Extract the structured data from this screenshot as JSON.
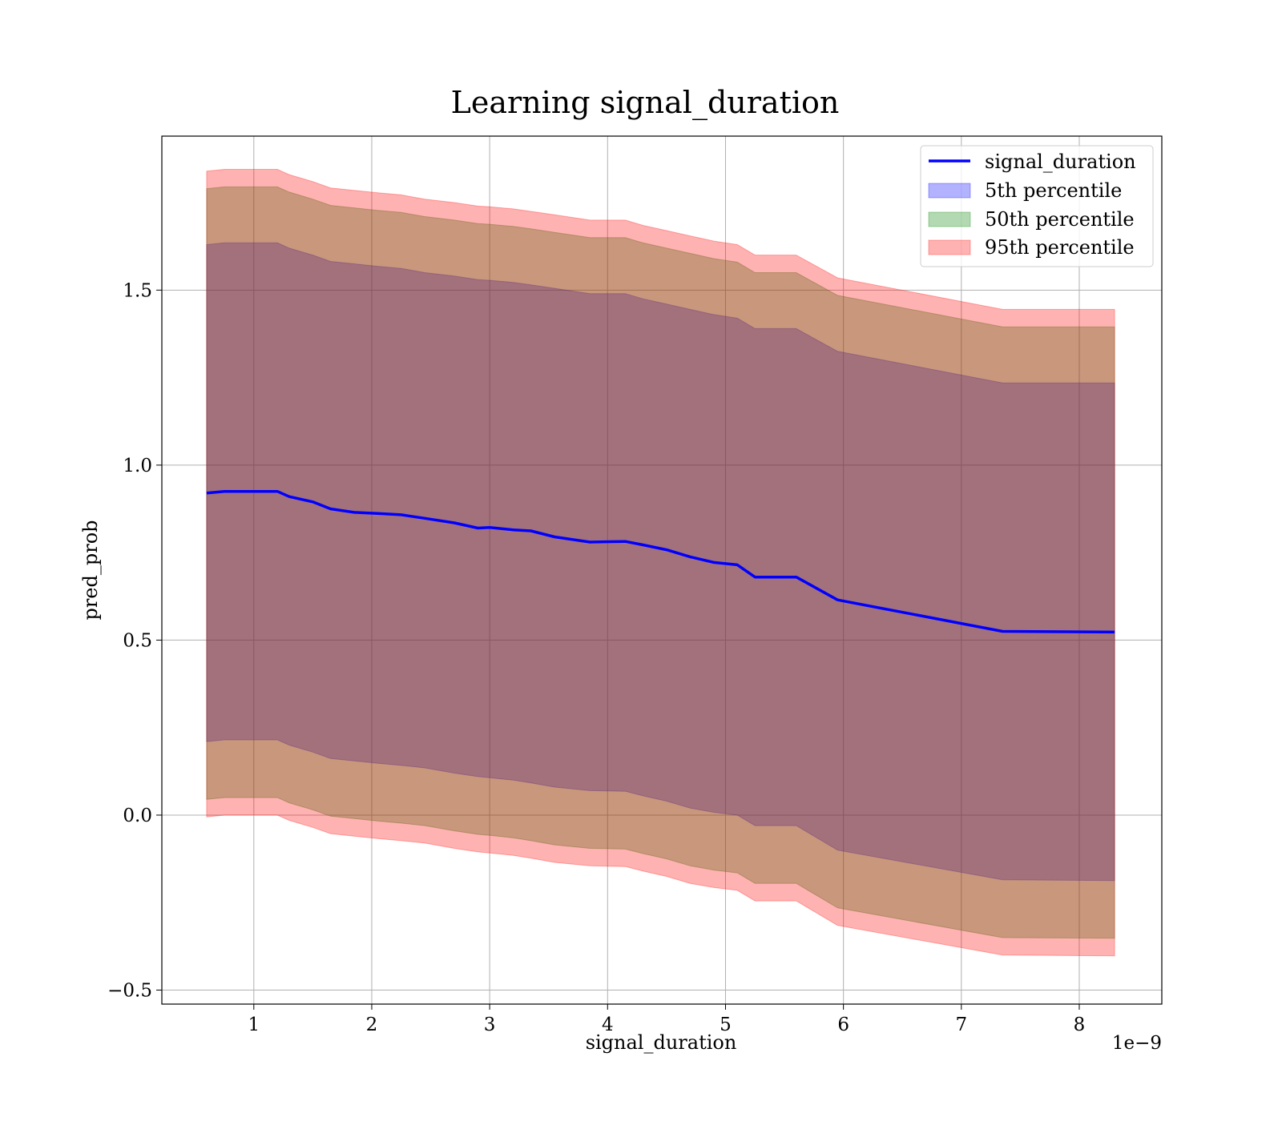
{
  "chart_data": {
    "type": "area",
    "title": "Learning signal_duration",
    "xlabel": "signal_duration",
    "ylabel": "pred_prob",
    "x_offset_text": "1e−9",
    "xlim": [
      0.22,
      8.7
    ],
    "ylim": [
      -0.54,
      1.94
    ],
    "grid": true,
    "legend_position": "top-right",
    "x_ticks": [
      1,
      2,
      3,
      4,
      5,
      6,
      7,
      8
    ],
    "x_tick_labels": [
      "1",
      "2",
      "3",
      "4",
      "5",
      "6",
      "7",
      "8"
    ],
    "y_ticks": [
      -0.5,
      0.0,
      0.5,
      1.0,
      1.5
    ],
    "y_tick_labels": [
      "−0.5",
      "0.0",
      "0.5",
      "1.0",
      "1.5"
    ],
    "x": [
      0.6,
      0.75,
      0.9,
      1.05,
      1.2,
      1.3,
      1.5,
      1.65,
      1.85,
      2.05,
      2.25,
      2.45,
      2.7,
      2.9,
      3.0,
      3.2,
      3.35,
      3.55,
      3.85,
      4.15,
      4.3,
      4.5,
      4.7,
      4.9,
      5.1,
      5.25,
      5.6,
      5.95,
      7.35,
      8.3
    ],
    "series": [
      {
        "name": "signal_duration",
        "kind": "line",
        "color": "#0000ff",
        "values": [
          0.92,
          0.925,
          0.925,
          0.925,
          0.925,
          0.91,
          0.895,
          0.875,
          0.865,
          0.862,
          0.858,
          0.848,
          0.835,
          0.82,
          0.822,
          0.815,
          0.812,
          0.795,
          0.78,
          0.782,
          0.772,
          0.758,
          0.738,
          0.722,
          0.715,
          0.68,
          0.68,
          0.615,
          0.525,
          0.523
        ]
      },
      {
        "name": "5th percentile",
        "kind": "band",
        "color": "#0000ff",
        "opacity": 0.3,
        "upper": [
          1.63,
          1.635,
          1.635,
          1.635,
          1.635,
          1.62,
          1.6,
          1.582,
          1.575,
          1.568,
          1.562,
          1.55,
          1.54,
          1.53,
          1.528,
          1.522,
          1.515,
          1.505,
          1.49,
          1.49,
          1.475,
          1.46,
          1.445,
          1.43,
          1.42,
          1.39,
          1.39,
          1.325,
          1.235,
          1.235
        ],
        "lower": [
          0.21,
          0.215,
          0.215,
          0.215,
          0.215,
          0.2,
          0.18,
          0.162,
          0.155,
          0.148,
          0.142,
          0.135,
          0.12,
          0.11,
          0.107,
          0.1,
          0.092,
          0.08,
          0.07,
          0.068,
          0.055,
          0.04,
          0.02,
          0.008,
          0.0,
          -0.03,
          -0.03,
          -0.1,
          -0.185,
          -0.187
        ]
      },
      {
        "name": "50th percentile",
        "kind": "band",
        "color": "#008000",
        "opacity": 0.3,
        "upper": [
          1.79,
          1.795,
          1.795,
          1.795,
          1.795,
          1.78,
          1.76,
          1.742,
          1.735,
          1.728,
          1.722,
          1.71,
          1.7,
          1.69,
          1.688,
          1.682,
          1.675,
          1.665,
          1.65,
          1.65,
          1.635,
          1.62,
          1.605,
          1.59,
          1.58,
          1.55,
          1.55,
          1.485,
          1.395,
          1.395
        ],
        "lower": [
          0.045,
          0.05,
          0.05,
          0.05,
          0.05,
          0.035,
          0.015,
          -0.003,
          -0.01,
          -0.017,
          -0.023,
          -0.03,
          -0.045,
          -0.055,
          -0.058,
          -0.065,
          -0.073,
          -0.085,
          -0.095,
          -0.097,
          -0.11,
          -0.125,
          -0.145,
          -0.157,
          -0.165,
          -0.195,
          -0.195,
          -0.265,
          -0.35,
          -0.352
        ]
      },
      {
        "name": "95th percentile",
        "kind": "band",
        "color": "#ff0000",
        "opacity": 0.3,
        "upper": [
          1.84,
          1.845,
          1.845,
          1.845,
          1.845,
          1.83,
          1.81,
          1.792,
          1.785,
          1.778,
          1.772,
          1.76,
          1.75,
          1.74,
          1.738,
          1.732,
          1.725,
          1.715,
          1.7,
          1.7,
          1.685,
          1.67,
          1.655,
          1.64,
          1.63,
          1.6,
          1.6,
          1.535,
          1.445,
          1.445
        ],
        "lower": [
          -0.005,
          0.0,
          0.0,
          0.0,
          0.0,
          -0.015,
          -0.035,
          -0.053,
          -0.06,
          -0.067,
          -0.073,
          -0.08,
          -0.095,
          -0.105,
          -0.108,
          -0.115,
          -0.123,
          -0.135,
          -0.145,
          -0.147,
          -0.16,
          -0.175,
          -0.195,
          -0.207,
          -0.215,
          -0.245,
          -0.245,
          -0.315,
          -0.4,
          -0.402
        ]
      }
    ]
  }
}
